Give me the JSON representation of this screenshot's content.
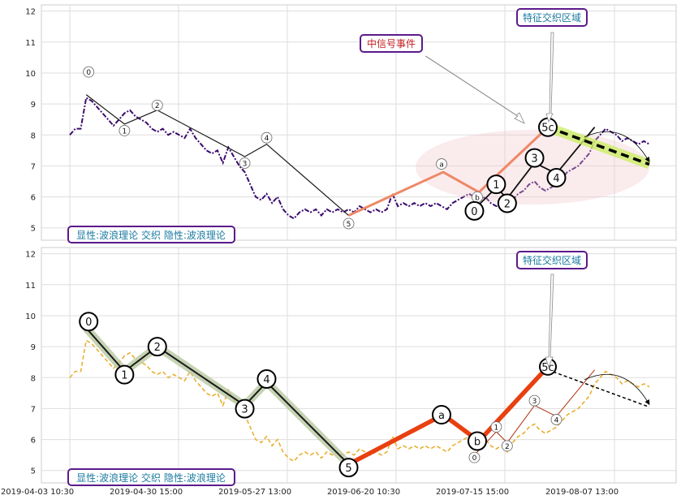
{
  "chart_data": [
    {
      "type": "line",
      "title": "",
      "ylim": [
        4.6,
        12.2
      ],
      "y_ticks": [
        5,
        6,
        7,
        8,
        9,
        10,
        11,
        12
      ],
      "x_ticks": [
        "2019-04-03 10:30",
        "2019-04-30 15:00",
        "2019-05-27 13:00",
        "2019-06-20 10:30",
        "2019-07-15 15:00",
        "2019-08-07 13:00"
      ],
      "grid": true,
      "colors": {
        "price": "#3b0a6e",
        "wave_main": "#1a1a1a",
        "wave_sub": "#ee8866",
        "forecast": "#000000",
        "highlight": "#ccee66",
        "ellipse": "#f2c6cc"
      },
      "price_series": [
        8.0,
        8.2,
        8.2,
        9.2,
        9.1,
        8.9,
        8.7,
        8.5,
        8.3,
        8.5,
        8.7,
        8.8,
        8.6,
        8.5,
        8.4,
        8.2,
        8.1,
        8.2,
        8.0,
        8.1,
        8.0,
        7.9,
        8.2,
        7.9,
        7.7,
        7.5,
        7.4,
        7.5,
        7.1,
        7.6,
        7.3,
        7.0,
        6.8,
        6.4,
        6.0,
        5.9,
        6.1,
        5.8,
        6.0,
        5.6,
        5.4,
        5.3,
        5.5,
        5.6,
        5.5,
        5.6,
        5.4,
        5.6,
        5.5,
        5.6,
        5.5,
        5.6,
        5.5,
        5.7,
        5.6,
        5.5,
        5.6,
        5.5,
        5.6,
        6.1,
        5.7,
        5.8,
        5.7,
        5.8,
        5.7,
        5.8,
        5.7,
        5.8,
        5.7,
        5.6,
        5.8,
        5.9,
        6.0,
        6.1,
        6.0,
        5.9,
        6.0,
        5.8,
        5.7,
        5.8,
        5.6,
        5.9,
        6.1,
        6.2,
        6.4,
        6.5,
        6.3,
        6.2,
        6.3,
        6.4,
        6.6,
        6.8,
        6.9,
        7.0,
        7.2,
        7.4,
        7.8,
        8.0,
        8.2,
        8.1,
        8.0,
        7.8,
        7.9,
        7.8,
        7.7,
        7.8,
        7.7
      ],
      "wave_main": {
        "labels": [
          "0",
          "1",
          "2",
          "3",
          "4",
          "5"
        ],
        "values": [
          9.3,
          8.35,
          8.8,
          7.3,
          7.7,
          5.4
        ]
      },
      "wave_abc": {
        "labels": [
          "a",
          "b",
          "c"
        ],
        "values": [
          6.8,
          6.15,
          8.25
        ]
      },
      "wave_sub": {
        "labels": [
          "0",
          "1",
          "2",
          "3",
          "4",
          "5"
        ],
        "values": [
          5.6,
          6.3,
          5.95,
          7.1,
          6.75,
          8.25
        ]
      },
      "forecast": [
        8.25,
        7.05
      ],
      "annotations": [
        "中信号事件",
        "特征交织区域"
      ],
      "info_label": "显性:波浪理论 交织 隐性:波浪理论"
    },
    {
      "type": "line",
      "title": "",
      "ylim": [
        4.6,
        12.2
      ],
      "y_ticks": [
        5,
        6,
        7,
        8,
        9,
        10,
        11,
        12
      ],
      "x_ticks": [
        "2019-04-03 10:30",
        "2019-04-30 15:00",
        "2019-05-27 13:00",
        "2019-06-20 10:30",
        "2019-07-15 15:00",
        "2019-08-07 13:00"
      ],
      "grid": true,
      "colors": {
        "price": "#e8b030",
        "wave_main": "#1a1a1a",
        "wave_highlight": "#b8c8a0",
        "wave_abc": "#e84010",
        "forecast": "#000000"
      },
      "price_series": [
        8.0,
        8.2,
        8.2,
        9.2,
        9.1,
        8.9,
        8.7,
        8.5,
        8.3,
        8.5,
        8.7,
        8.8,
        8.6,
        8.5,
        8.4,
        8.2,
        8.1,
        8.2,
        8.0,
        8.1,
        8.0,
        7.9,
        8.2,
        7.9,
        7.7,
        7.5,
        7.4,
        7.5,
        7.1,
        7.6,
        7.3,
        7.0,
        6.8,
        6.4,
        6.0,
        5.9,
        6.1,
        5.8,
        6.0,
        5.6,
        5.4,
        5.3,
        5.5,
        5.6,
        5.5,
        5.6,
        5.4,
        5.6,
        5.5,
        5.6,
        5.5,
        5.6,
        5.5,
        5.7,
        5.6,
        5.5,
        5.6,
        5.5,
        5.6,
        6.1,
        5.7,
        5.8,
        5.7,
        5.8,
        5.7,
        5.8,
        5.7,
        5.8,
        5.7,
        5.6,
        5.8,
        5.9,
        6.0,
        6.1,
        6.0,
        5.9,
        6.0,
        5.8,
        5.7,
        5.8,
        5.6,
        5.9,
        6.1,
        6.2,
        6.4,
        6.5,
        6.3,
        6.2,
        6.3,
        6.4,
        6.6,
        6.8,
        6.9,
        7.0,
        7.2,
        7.4,
        7.8,
        8.0,
        8.2,
        8.1,
        8.0,
        7.8,
        7.9,
        7.8,
        7.7,
        7.8,
        7.7
      ],
      "wave_main": {
        "labels": [
          "0",
          "1",
          "2",
          "3",
          "4",
          "5"
        ],
        "values": [
          9.6,
          8.2,
          9.0,
          7.1,
          7.85,
          5.2
        ]
      },
      "wave_abc": {
        "labels": [
          "a",
          "b",
          "c"
        ],
        "values": [
          6.8,
          5.95,
          8.35
        ]
      },
      "wave_sub": {
        "labels": [
          "0",
          "1",
          "2",
          "3",
          "4",
          "5"
        ],
        "values": [
          5.5,
          6.25,
          5.9,
          7.1,
          6.75,
          8.25
        ]
      },
      "forecast": [
        8.25,
        7.05
      ],
      "annotations": [
        "特征交织区域"
      ],
      "info_label": "显性:波浪理论 交织 隐性:波浪理论"
    }
  ]
}
